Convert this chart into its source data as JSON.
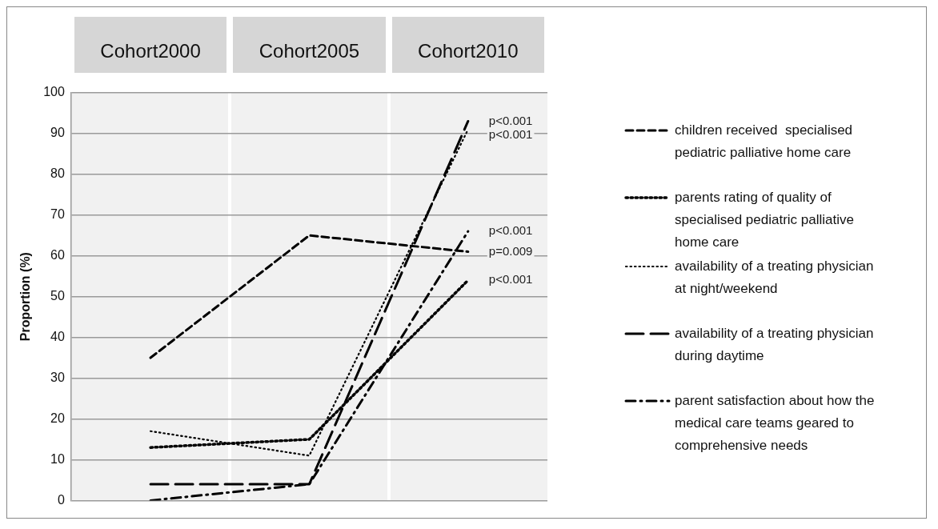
{
  "chart_data": {
    "type": "line",
    "ylabel": "Proportion (%)",
    "categories": [
      "Cohort2000",
      "Cohort2005",
      "Cohort2010"
    ],
    "series": [
      {
        "name": "children received  specialised pediatric palliative home care",
        "color": "#000000",
        "line_style": "dashed",
        "values": [
          35,
          65,
          61
        ]
      },
      {
        "name": "parents rating of quality of specialised pediatric palliative home care",
        "color": "#000000",
        "line_style": "dotted",
        "values": [
          13,
          15,
          54
        ]
      },
      {
        "name": "availability of a treating physician at night/weekend",
        "color": "#000000",
        "line_style": "dotted",
        "values": [
          17,
          11,
          91
        ]
      },
      {
        "name": "availability of a treating physician during daytime",
        "color": "#000000",
        "line_style": "dashed",
        "values": [
          4,
          4,
          93
        ]
      },
      {
        "name": "parent satisfaction about how the medical care teams geared to comprehensive needs",
        "color": "#000000",
        "line_style": "dashdot",
        "values": [
          0,
          4,
          66
        ]
      }
    ],
    "ylim": [
      0,
      100
    ],
    "yticks": [
      0,
      10,
      20,
      30,
      40,
      50,
      60,
      70,
      80,
      90,
      100
    ],
    "grid": "y",
    "legend": "right",
    "marker": "none",
    "annotations": [
      {
        "text": "p<0.001",
        "x": "Cohort2010",
        "y": 93
      },
      {
        "text": "p<0.001",
        "x": "Cohort2010",
        "y": 91
      },
      {
        "text": "p<0.001",
        "x": "Cohort2010",
        "y": 66
      },
      {
        "text": "p=0.009",
        "x": "Cohort2010",
        "y": 61
      },
      {
        "text": "p<0.001",
        "x": "Cohort2010",
        "y": 54
      }
    ]
  }
}
